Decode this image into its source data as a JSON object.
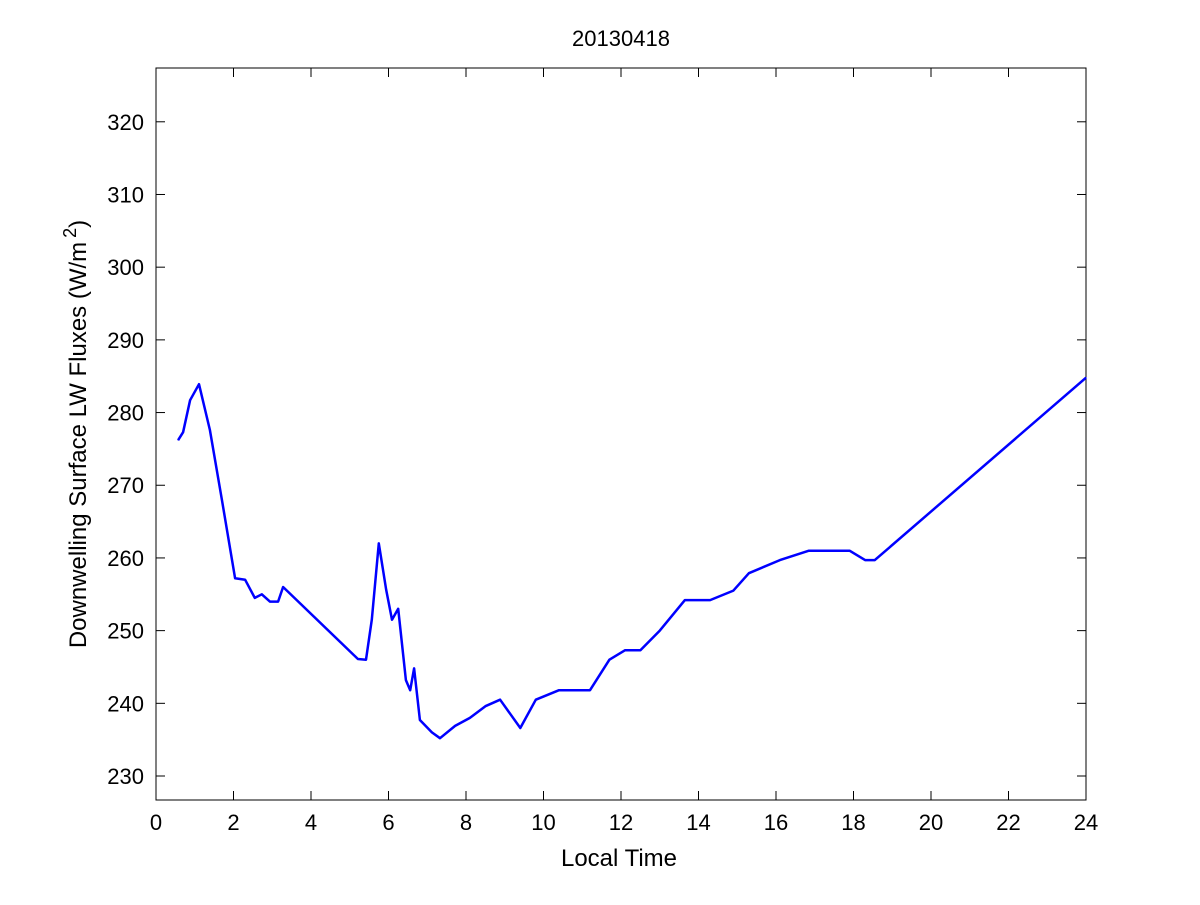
{
  "chart_data": {
    "type": "line",
    "title": "20130418",
    "xlabel": "Local Time",
    "ylabel": "Downwelling Surface LW Fluxes (W/m",
    "ylabel_superscript": "2",
    "ylabel_close": ")",
    "xlim": [
      0,
      24
    ],
    "ylim": [
      226.7,
      327.4
    ],
    "xticks": [
      0,
      2,
      4,
      6,
      8,
      10,
      12,
      14,
      16,
      18,
      20,
      22,
      24
    ],
    "yticks": [
      230,
      240,
      250,
      260,
      270,
      280,
      290,
      300,
      310,
      320
    ],
    "grid": false,
    "line_color": "#0000ff",
    "series": [
      {
        "x": [
          0.57,
          0.7,
          0.88,
          1.11,
          1.39,
          1.7,
          2.04,
          2.3,
          2.55,
          2.73,
          2.94,
          3.15,
          3.28,
          5.21,
          5.42,
          5.57,
          5.75,
          5.94,
          6.09,
          6.25,
          6.45,
          6.56,
          6.66,
          6.81,
          7.12,
          7.33,
          7.72,
          8.1,
          8.5,
          8.88,
          9.4,
          9.8,
          10.4,
          11.2,
          11.7,
          12.1,
          12.5,
          13.0,
          13.65,
          14.3,
          14.9,
          15.3,
          16.1,
          16.85,
          17.9,
          18.3,
          18.55,
          24.0
        ],
        "y": [
          276.2,
          277.3,
          281.7,
          283.9,
          277.6,
          268.0,
          257.2,
          257.0,
          254.5,
          255.0,
          254.0,
          254.0,
          256.0,
          246.1,
          246.0,
          251.5,
          262.0,
          255.6,
          251.5,
          253.0,
          243.2,
          241.8,
          244.8,
          237.7,
          236.0,
          235.2,
          236.9,
          238.0,
          239.6,
          240.5,
          236.6,
          240.5,
          241.8,
          241.8,
          246.0,
          247.3,
          247.3,
          250.0,
          254.2,
          254.2,
          255.5,
          257.9,
          259.7,
          261.0,
          261.0,
          259.7,
          259.7,
          284.8
        ]
      }
    ]
  }
}
